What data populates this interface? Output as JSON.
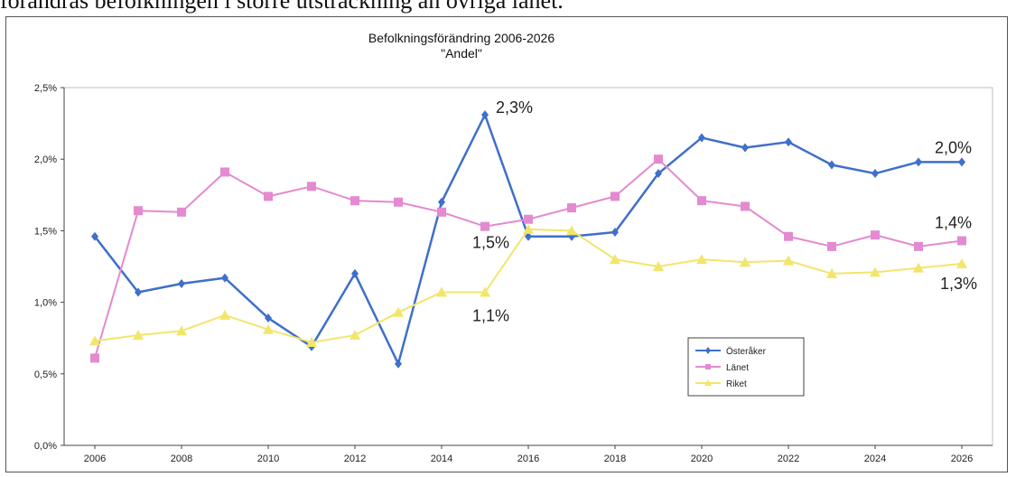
{
  "top_text": "förändras befolkningen i större utsträckning än övriga länet.",
  "chart_data": {
    "type": "line",
    "title": "Befolkningsförändring 2006-2026",
    "subtitle": "\"Andel\"",
    "x": [
      2006,
      2007,
      2008,
      2009,
      2010,
      2011,
      2012,
      2013,
      2014,
      2015,
      2016,
      2017,
      2018,
      2019,
      2020,
      2021,
      2022,
      2023,
      2024,
      2025,
      2026
    ],
    "x_ticks": [
      "2006",
      "2008",
      "2010",
      "2012",
      "2014",
      "2016",
      "2018",
      "2020",
      "2022",
      "2024",
      "2026"
    ],
    "y_ticks": [
      "0,0%",
      "0,5%",
      "1,0%",
      "1,5%",
      "2,0%",
      "2,5%"
    ],
    "ylim": [
      0,
      2.5
    ],
    "grid": false,
    "legend_position": "lower-right",
    "series": [
      {
        "name": "Österåker",
        "color": "#3f6fc9",
        "marker": "diamond",
        "values": [
          1.46,
          1.07,
          1.13,
          1.17,
          0.89,
          0.69,
          1.2,
          0.57,
          1.7,
          2.31,
          1.46,
          1.46,
          1.49,
          1.9,
          2.15,
          2.08,
          2.12,
          1.96,
          1.9,
          1.98,
          1.98
        ]
      },
      {
        "name": "Länet",
        "color": "#e38ad0",
        "marker": "square",
        "values": [
          0.61,
          1.64,
          1.63,
          1.91,
          1.74,
          1.81,
          1.71,
          1.7,
          1.63,
          1.53,
          1.58,
          1.66,
          1.74,
          2.0,
          1.71,
          1.67,
          1.46,
          1.39,
          1.47,
          1.39,
          1.43
        ]
      },
      {
        "name": "Riket",
        "color": "#f2e56b",
        "marker": "triangle",
        "values": [
          0.73,
          0.77,
          0.8,
          0.91,
          0.81,
          0.72,
          0.77,
          0.93,
          1.07,
          1.07,
          1.51,
          1.5,
          1.3,
          1.25,
          1.3,
          1.28,
          1.29,
          1.2,
          1.21,
          1.24,
          1.27
        ]
      }
    ],
    "annotations": [
      {
        "text": "2,3%",
        "x": 2015,
        "y": 2.31
      },
      {
        "text": "1,5%",
        "x": 2015,
        "y": 1.53
      },
      {
        "text": "1,1%",
        "x": 2015,
        "y": 1.07
      },
      {
        "text": "2,0%",
        "x": 2026,
        "y": 1.98
      },
      {
        "text": "1,4%",
        "x": 2026,
        "y": 1.43
      },
      {
        "text": "1,3%",
        "x": 2026,
        "y": 1.27
      }
    ]
  }
}
